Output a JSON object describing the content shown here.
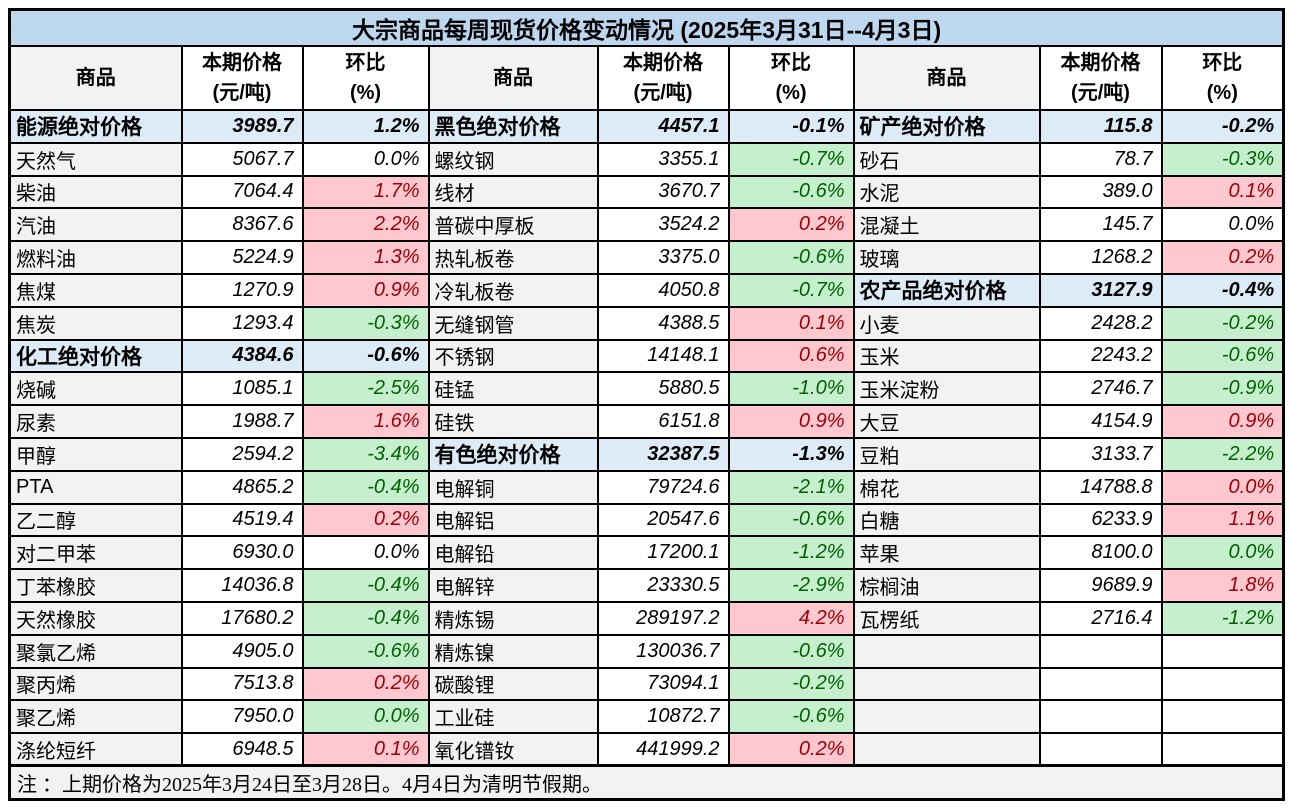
{
  "title": "大宗商品每周现货价格变动情况 (2025年3月31日--4月3日)",
  "header": {
    "commodity": "商品",
    "price": "本期价格",
    "price_unit": "(元/吨)",
    "wow": "环比",
    "wow_unit": "(%)"
  },
  "note": "注 ：上期价格为2025年3月24日至3月28日。4月4日为清明节假期。",
  "colors": {
    "title_bg": "#BDD7EE",
    "category_bg": "#DDEBF7",
    "name_bg": "#F2F2F2",
    "up_bg": "#FFC7CE",
    "up_text": "#9C0006",
    "down_bg": "#C6EFCE",
    "down_text": "#006100",
    "border": "#000000"
  },
  "columns": [
    {
      "rows": [
        {
          "name": "能源绝对价格",
          "price": "3989.7",
          "pct": "1.2%",
          "type": "category"
        },
        {
          "name": "天然气",
          "price": "5067.7",
          "pct": "0.0%",
          "type": "flat"
        },
        {
          "name": "柴油",
          "price": "7064.4",
          "pct": "1.7%",
          "type": "red"
        },
        {
          "name": "汽油",
          "price": "8367.6",
          "pct": "2.2%",
          "type": "red"
        },
        {
          "name": "燃料油",
          "price": "5224.9",
          "pct": "1.3%",
          "type": "red"
        },
        {
          "name": "焦煤",
          "price": "1270.9",
          "pct": "0.9%",
          "type": "red"
        },
        {
          "name": "焦炭",
          "price": "1293.4",
          "pct": "-0.3%",
          "type": "green"
        },
        {
          "name": "化工绝对价格",
          "price": "4384.6",
          "pct": "-0.6%",
          "type": "category"
        },
        {
          "name": "烧碱",
          "price": "1085.1",
          "pct": "-2.5%",
          "type": "green"
        },
        {
          "name": "尿素",
          "price": "1988.7",
          "pct": "1.6%",
          "type": "red"
        },
        {
          "name": "甲醇",
          "price": "2594.2",
          "pct": "-3.4%",
          "type": "green"
        },
        {
          "name": "PTA",
          "price": "4865.2",
          "pct": "-0.4%",
          "type": "green"
        },
        {
          "name": "乙二醇",
          "price": "4519.4",
          "pct": "0.2%",
          "type": "red"
        },
        {
          "name": "对二甲苯",
          "price": "6930.0",
          "pct": "0.0%",
          "type": "flat"
        },
        {
          "name": "丁苯橡胶",
          "price": "14036.8",
          "pct": "-0.4%",
          "type": "green"
        },
        {
          "name": "天然橡胶",
          "price": "17680.2",
          "pct": "-0.4%",
          "type": "green"
        },
        {
          "name": "聚氯乙烯",
          "price": "4905.0",
          "pct": "-0.6%",
          "type": "green"
        },
        {
          "name": "聚丙烯",
          "price": "7513.8",
          "pct": "0.2%",
          "type": "red"
        },
        {
          "name": "聚乙烯",
          "price": "7950.0",
          "pct": "0.0%",
          "type": "green"
        },
        {
          "name": "涤纶短纤",
          "price": "6948.5",
          "pct": "0.1%",
          "type": "red"
        }
      ]
    },
    {
      "rows": [
        {
          "name": "黑色绝对价格",
          "price": "4457.1",
          "pct": "-0.1%",
          "type": "category"
        },
        {
          "name": "螺纹钢",
          "price": "3355.1",
          "pct": "-0.7%",
          "type": "green"
        },
        {
          "name": "线材",
          "price": "3670.7",
          "pct": "-0.6%",
          "type": "green"
        },
        {
          "name": "普碳中厚板",
          "price": "3524.2",
          "pct": "0.2%",
          "type": "red"
        },
        {
          "name": "热轧板卷",
          "price": "3375.0",
          "pct": "-0.6%",
          "type": "green"
        },
        {
          "name": "冷轧板卷",
          "price": "4050.8",
          "pct": "-0.7%",
          "type": "green"
        },
        {
          "name": "无缝钢管",
          "price": "4388.5",
          "pct": "0.1%",
          "type": "red"
        },
        {
          "name": "不锈钢",
          "price": "14148.1",
          "pct": "0.6%",
          "type": "red"
        },
        {
          "name": "硅锰",
          "price": "5880.5",
          "pct": "-1.0%",
          "type": "green"
        },
        {
          "name": "硅铁",
          "price": "6151.8",
          "pct": "0.9%",
          "type": "red"
        },
        {
          "name": "有色绝对价格",
          "price": "32387.5",
          "pct": "-1.3%",
          "type": "category"
        },
        {
          "name": "电解铜",
          "price": "79724.6",
          "pct": "-2.1%",
          "type": "green"
        },
        {
          "name": "电解铝",
          "price": "20547.6",
          "pct": "-0.6%",
          "type": "green"
        },
        {
          "name": "电解铅",
          "price": "17200.1",
          "pct": "-1.2%",
          "type": "green"
        },
        {
          "name": "电解锌",
          "price": "23330.5",
          "pct": "-2.9%",
          "type": "green"
        },
        {
          "name": "精炼锡",
          "price": "289197.2",
          "pct": "4.2%",
          "type": "red"
        },
        {
          "name": "精炼镍",
          "price": "130036.7",
          "pct": "-0.6%",
          "type": "green"
        },
        {
          "name": "碳酸锂",
          "price": "73094.1",
          "pct": "-0.2%",
          "type": "green"
        },
        {
          "name": "工业硅",
          "price": "10872.7",
          "pct": "-0.6%",
          "type": "green"
        },
        {
          "name": "氧化镨钕",
          "price": "441999.2",
          "pct": "0.2%",
          "type": "red"
        }
      ]
    },
    {
      "rows": [
        {
          "name": "矿产绝对价格",
          "price": "115.8",
          "pct": "-0.2%",
          "type": "category"
        },
        {
          "name": "砂石",
          "price": "78.7",
          "pct": "-0.3%",
          "type": "green"
        },
        {
          "name": "水泥",
          "price": "389.0",
          "pct": "0.1%",
          "type": "red"
        },
        {
          "name": "混凝土",
          "price": "145.7",
          "pct": "0.0%",
          "type": "flat"
        },
        {
          "name": "玻璃",
          "price": "1268.2",
          "pct": "0.2%",
          "type": "red"
        },
        {
          "name": "农产品绝对价格",
          "price": "3127.9",
          "pct": "-0.4%",
          "type": "category"
        },
        {
          "name": "小麦",
          "price": "2428.2",
          "pct": "-0.2%",
          "type": "green"
        },
        {
          "name": "玉米",
          "price": "2243.2",
          "pct": "-0.6%",
          "type": "green"
        },
        {
          "name": "玉米淀粉",
          "price": "2746.7",
          "pct": "-0.9%",
          "type": "green"
        },
        {
          "name": "大豆",
          "price": "4154.9",
          "pct": "0.9%",
          "type": "red"
        },
        {
          "name": "豆粕",
          "price": "3133.7",
          "pct": "-2.2%",
          "type": "green"
        },
        {
          "name": "棉花",
          "price": "14788.8",
          "pct": "0.0%",
          "type": "red"
        },
        {
          "name": "白糖",
          "price": "6233.9",
          "pct": "1.1%",
          "type": "red"
        },
        {
          "name": "苹果",
          "price": "8100.0",
          "pct": "0.0%",
          "type": "green"
        },
        {
          "name": "棕榈油",
          "price": "9689.9",
          "pct": "1.8%",
          "type": "red"
        },
        {
          "name": "瓦楞纸",
          "price": "2716.4",
          "pct": "-1.2%",
          "type": "green"
        },
        {
          "name": "",
          "price": "",
          "pct": "",
          "type": "empty"
        },
        {
          "name": "",
          "price": "",
          "pct": "",
          "type": "empty"
        },
        {
          "name": "",
          "price": "",
          "pct": "",
          "type": "empty"
        },
        {
          "name": "",
          "price": "",
          "pct": "",
          "type": "empty"
        }
      ]
    }
  ]
}
